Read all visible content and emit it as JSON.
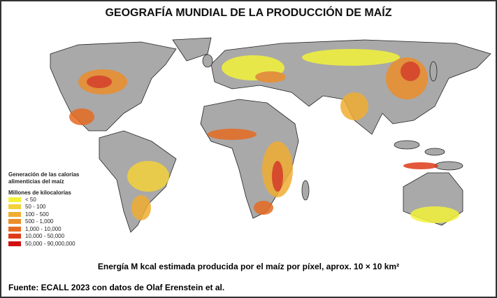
{
  "header": {
    "title": "GEOGRAFÍA MUNDIAL DE LA PRODUCCIÓN DE MAÍZ"
  },
  "legend": {
    "title": "Generación de las calorías alimenticias del maíz",
    "subtitle": "Millones de kilocalorías",
    "items": [
      {
        "label": "< 50",
        "color": "#f2f23a"
      },
      {
        "label": "50 - 100",
        "color": "#f3d13a"
      },
      {
        "label": "100 - 500",
        "color": "#f0ad33"
      },
      {
        "label": "500 - 1,000",
        "color": "#ec8d2b"
      },
      {
        "label": "1,000 - 10,000",
        "color": "#e66b22"
      },
      {
        "label": "10,000 - 50,000",
        "color": "#df3b19"
      },
      {
        "label": "50,000 - 90,000,000",
        "color": "#d21010"
      }
    ]
  },
  "caption": "Energía M kcal estimada producida por el maíz por píxel, aprox. 10 × 10 km²",
  "source": "Fuente: ECALL 2023 con datos de Olaf Erenstein et al."
}
